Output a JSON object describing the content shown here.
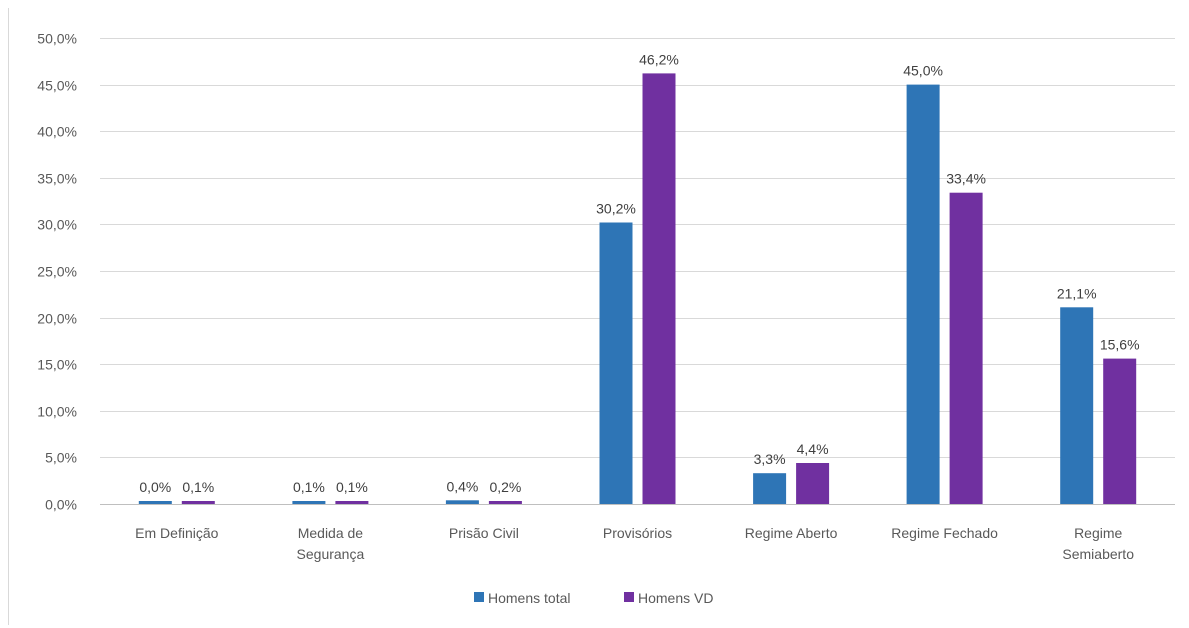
{
  "chart_data": {
    "type": "bar",
    "title": "",
    "xlabel": "",
    "ylabel": "",
    "categories": [
      [
        "Em Definição"
      ],
      [
        "Medida de",
        "Segurança"
      ],
      [
        "Prisão Civil"
      ],
      [
        "Provisórios"
      ],
      [
        "Regime Aberto"
      ],
      [
        "Regime Fechado"
      ],
      [
        "Regime",
        "Semiaberto"
      ]
    ],
    "series": [
      {
        "name": "Homens total",
        "color": "#2E75B6",
        "values": [
          0.0,
          0.1,
          0.4,
          30.2,
          3.3,
          45.0,
          21.1
        ],
        "labels": [
          "0,0%",
          "0,1%",
          "0,4%",
          "30,2%",
          "3,3%",
          "45,0%",
          "21,1%"
        ]
      },
      {
        "name": "Homens VD",
        "color": "#7030A0",
        "values": [
          0.1,
          0.1,
          0.2,
          46.2,
          4.4,
          33.4,
          15.6
        ],
        "labels": [
          "0,1%",
          "0,1%",
          "0,2%",
          "46,2%",
          "4,4%",
          "33,4%",
          "15,6%"
        ]
      }
    ],
    "ylim": [
      0,
      50
    ],
    "y_ticks": [
      0,
      5,
      10,
      15,
      20,
      25,
      30,
      35,
      40,
      45,
      50
    ],
    "y_tick_labels": [
      "0,0%",
      "5,0%",
      "10,0%",
      "15,0%",
      "20,0%",
      "25,0%",
      "30,0%",
      "35,0%",
      "40,0%",
      "45,0%",
      "50,0%"
    ],
    "grid": true,
    "legend_position": "bottom",
    "colors": {
      "grid": "#D9D9D9",
      "axis": "#BFBFBF",
      "border": "#D9D9D9"
    }
  }
}
